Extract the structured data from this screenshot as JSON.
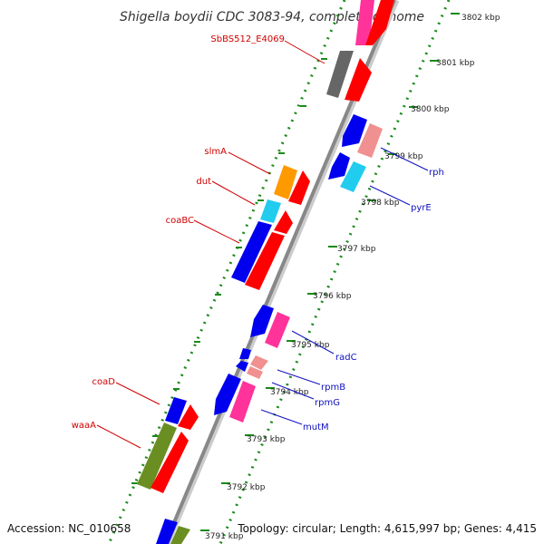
{
  "title": "Shigella boydii CDC 3083-94, complete genome",
  "footer": {
    "accession": "Accession: NC_010658",
    "summary": "Topology: circular; Length: 4,615,997 bp; Genes: 4,415"
  },
  "ticks": [
    {
      "label": "3802 kbp",
      "pos": 3802
    },
    {
      "label": "3801 kbp",
      "pos": 3801
    },
    {
      "label": "3800 kbp",
      "pos": 3800
    },
    {
      "label": "3799 kbp",
      "pos": 3799
    },
    {
      "label": "3798 kbp",
      "pos": 3798
    },
    {
      "label": "3797 kbp",
      "pos": 3797
    },
    {
      "label": "3796 kbp",
      "pos": 3796
    },
    {
      "label": "3795 kbp",
      "pos": 3795
    },
    {
      "label": "3794 kbp",
      "pos": 3794
    },
    {
      "label": "3793 kbp",
      "pos": 3793
    },
    {
      "label": "3792 kbp",
      "pos": 3792
    },
    {
      "label": "3791 kbp",
      "pos": 3791
    }
  ],
  "gene_labels": {
    "left": [
      {
        "name": "SbBS512_E4069",
        "color": "#d00000"
      },
      {
        "name": "slmA",
        "color": "#d00000"
      },
      {
        "name": "dut",
        "color": "#d00000"
      },
      {
        "name": "coaBC",
        "color": "#d00000"
      },
      {
        "name": "coaD",
        "color": "#d00000"
      },
      {
        "name": "waaA",
        "color": "#d00000"
      }
    ],
    "right": [
      {
        "name": "rph",
        "color": "#1010c0"
      },
      {
        "name": "pyrE",
        "color": "#1010c0"
      },
      {
        "name": "radC",
        "color": "#1010c0"
      },
      {
        "name": "rpmB",
        "color": "#1010c0"
      },
      {
        "name": "rpmG",
        "color": "#1010c0"
      },
      {
        "name": "mutM",
        "color": "#1010c0"
      }
    ]
  },
  "colors": {
    "backbone": "#888888",
    "dots": "#1a8a1a",
    "red": "#ff0000",
    "blue": "#0000ee",
    "pink": "#ff3399",
    "lightpink": "#f09090",
    "cyan": "#22ccee",
    "orange": "#ff9900",
    "gray": "#666666",
    "olive": "#6b8e23"
  }
}
